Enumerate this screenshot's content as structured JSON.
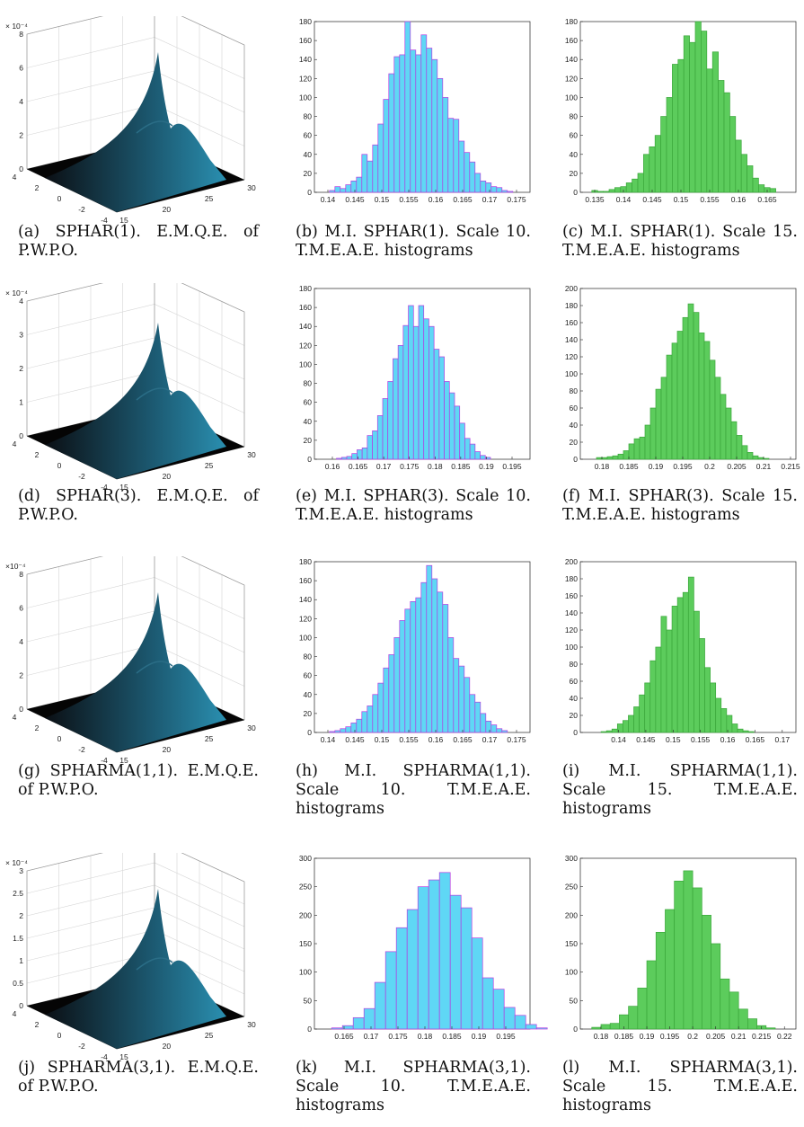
{
  "figure": {
    "rows": [
      {
        "surface": {
          "id": "a",
          "caption": "(a) SPHAR(1). E.M.Q.E. of P.W.P.O.",
          "exponent": "× 10⁻⁴",
          "z_ticks": [
            "0",
            "2",
            "4",
            "6",
            "8"
          ],
          "x_ticks": [
            "15",
            "20",
            "25",
            "30"
          ],
          "y_ticks": [
            "4",
            "2",
            "0",
            "-2",
            "-4"
          ]
        },
        "hist10": {
          "id": "b",
          "caption": "(b) M.I. SPHAR(1). Scale 10. T.M.E.A.E. histograms",
          "x_ticks": [
            "0.14",
            "0.145",
            "0.15",
            "0.155",
            "0.16",
            "0.165",
            "0.17",
            "0.175"
          ],
          "y_ticks": [
            "0",
            "20",
            "40",
            "60",
            "80",
            "100",
            "120",
            "140",
            "160",
            "180"
          ]
        },
        "hist15": {
          "id": "c",
          "caption": "(c) M.I. SPHAR(1). Scale 15. T.M.E.A.E. histograms",
          "x_ticks": [
            "0.135",
            "0.14",
            "0.145",
            "0.15",
            "0.155",
            "0.16",
            "0.165"
          ],
          "y_ticks": [
            "0",
            "20",
            "40",
            "60",
            "80",
            "100",
            "120",
            "140",
            "160",
            "180"
          ]
        }
      },
      {
        "surface": {
          "id": "d",
          "caption": "(d) SPHAR(3). E.M.Q.E. of P.W.P.O.",
          "exponent": "× 10⁻⁴",
          "z_ticks": [
            "0",
            "1",
            "2",
            "3",
            "4"
          ],
          "x_ticks": [
            "15",
            "20",
            "25",
            "30"
          ],
          "y_ticks": [
            "4",
            "2",
            "0",
            "-2",
            "-4"
          ]
        },
        "hist10": {
          "id": "e",
          "caption": "(e) M.I. SPHAR(3). Scale 10. T.M.E.A.E. histograms",
          "x_ticks": [
            "0.16",
            "0.165",
            "0.17",
            "0.175",
            "0.18",
            "0.185",
            "0.19",
            "0.195"
          ],
          "y_ticks": [
            "0",
            "20",
            "40",
            "60",
            "80",
            "100",
            "120",
            "140",
            "160",
            "180"
          ]
        },
        "hist15": {
          "id": "f",
          "caption": "(f) M.I. SPHAR(3). Scale 15. T.M.E.A.E. histograms",
          "x_ticks": [
            "0.18",
            "0.185",
            "0.19",
            "0.195",
            "0.2",
            "0.205",
            "0.21",
            "0.215"
          ],
          "y_ticks": [
            "0",
            "20",
            "40",
            "60",
            "80",
            "100",
            "120",
            "140",
            "160",
            "180",
            "200"
          ]
        }
      },
      {
        "surface": {
          "id": "g",
          "caption": "(g) SPHARMA(1,1). E.M.Q.E. of P.W.P.O.",
          "exponent": "×10⁻⁴",
          "z_ticks": [
            "0",
            "2",
            "4",
            "6",
            "8"
          ],
          "x_ticks": [
            "15",
            "20",
            "25",
            "30"
          ],
          "y_ticks": [
            "4",
            "2",
            "0",
            "-2",
            "-4"
          ]
        },
        "hist10": {
          "id": "h",
          "caption": "(h) M.I. SPHARMA(1,1). Scale 10. T.M.E.A.E. histograms",
          "x_ticks": [
            "0.14",
            "0.145",
            "0.15",
            "0.155",
            "0.16",
            "0.165",
            "0.17",
            "0.175"
          ],
          "y_ticks": [
            "0",
            "20",
            "40",
            "60",
            "80",
            "100",
            "120",
            "140",
            "160",
            "180"
          ]
        },
        "hist15": {
          "id": "i",
          "caption": "(i) M.I. SPHARMA(1,1). Scale 15. T.M.E.A.E. histograms",
          "x_ticks": [
            "0.14",
            "0.145",
            "0.15",
            "0.155",
            "0.16",
            "0.165",
            "0.17"
          ],
          "y_ticks": [
            "0",
            "20",
            "40",
            "60",
            "80",
            "100",
            "120",
            "140",
            "160",
            "180",
            "200"
          ]
        }
      },
      {
        "surface": {
          "id": "j",
          "caption": "(j) SPHARMA(3,1). E.M.Q.E. of P.W.P.O.",
          "exponent": "× 10⁻⁴",
          "z_ticks": [
            "0",
            "0.5",
            "1",
            "1.5",
            "2",
            "2.5",
            "3"
          ],
          "x_ticks": [
            "15",
            "20",
            "25",
            "30"
          ],
          "y_ticks": [
            "4",
            "2",
            "0",
            "-2",
            "-4"
          ]
        },
        "hist10": {
          "id": "k",
          "caption": "(k) M.I. SPHARMA(3,1). Scale 10. T.M.E.A.E. histograms",
          "x_ticks": [
            "0.165",
            "0.17",
            "0.175",
            "0.18",
            "0.185",
            "0.19",
            "0.195"
          ],
          "y_ticks": [
            "0",
            "50",
            "100",
            "150",
            "200",
            "250",
            "300"
          ]
        },
        "hist15": {
          "id": "l",
          "caption": "(l) M.I. SPHARMA(3,1). Scale 15. T.M.E.A.E. histograms",
          "x_ticks": [
            "0.18",
            "0.185",
            "0.19",
            "0.195",
            "0.2",
            "0.205",
            "0.21",
            "0.215",
            "0.22"
          ],
          "y_ticks": [
            "0",
            "50",
            "100",
            "150",
            "200",
            "250",
            "300"
          ]
        }
      }
    ]
  },
  "chart_data": [
    {
      "id": "b",
      "type": "bar",
      "xlim": [
        0.1375,
        0.1775
      ],
      "ylim": [
        0,
        180
      ],
      "bin_start": 0.1403,
      "bin_width": 0.001,
      "values": [
        2,
        6,
        4,
        8,
        12,
        16,
        40,
        33,
        50,
        72,
        98,
        125,
        143,
        145,
        180,
        150,
        145,
        166,
        152,
        140,
        120,
        100,
        78,
        77,
        54,
        42,
        32,
        20,
        12,
        10,
        6,
        5,
        2,
        1
      ],
      "fill": "#5fd7f5",
      "edge": "#b33ce0"
    },
    {
      "id": "c",
      "type": "bar",
      "xlim": [
        0.1325,
        0.17
      ],
      "ylim": [
        0,
        180
      ],
      "bin_start": 0.1345,
      "bin_width": 0.001,
      "values": [
        2,
        1,
        1,
        3,
        5,
        6,
        10,
        14,
        20,
        40,
        48,
        60,
        80,
        100,
        135,
        140,
        165,
        158,
        180,
        170,
        130,
        148,
        118,
        105,
        80,
        55,
        40,
        28,
        15,
        8,
        5,
        4
      ],
      "fill": "#5ccc5c",
      "edge": "#3aa63a"
    },
    {
      "id": "e",
      "type": "bar",
      "xlim": [
        0.1565,
        0.1985
      ],
      "ylim": [
        0,
        180
      ],
      "bin_start": 0.1608,
      "bin_width": 0.001,
      "values": [
        1,
        2,
        3,
        6,
        10,
        12,
        25,
        30,
        46,
        64,
        82,
        106,
        120,
        141,
        162,
        140,
        162,
        148,
        140,
        116,
        108,
        82,
        70,
        56,
        38,
        22,
        16,
        8,
        4,
        2
      ],
      "fill": "#5fd7f5",
      "edge": "#b33ce0"
    },
    {
      "id": "f",
      "type": "bar",
      "xlim": [
        0.176,
        0.216
      ],
      "ylim": [
        0,
        200
      ],
      "bin_start": 0.179,
      "bin_width": 0.001,
      "values": [
        2,
        2,
        3,
        4,
        6,
        10,
        18,
        24,
        26,
        40,
        60,
        82,
        96,
        122,
        136,
        150,
        166,
        182,
        172,
        148,
        138,
        116,
        96,
        76,
        60,
        44,
        28,
        16,
        8,
        4,
        2,
        1
      ],
      "fill": "#5ccc5c",
      "edge": "#3aa63a"
    },
    {
      "id": "h",
      "type": "bar",
      "xlim": [
        0.1375,
        0.1775
      ],
      "ylim": [
        0,
        180
      ],
      "bin_start": 0.1403,
      "bin_width": 0.001,
      "values": [
        1,
        2,
        4,
        6,
        10,
        14,
        22,
        28,
        40,
        52,
        68,
        82,
        100,
        118,
        130,
        138,
        142,
        158,
        176,
        162,
        148,
        135,
        100,
        78,
        70,
        58,
        40,
        32,
        20,
        12,
        8,
        4,
        2
      ],
      "fill": "#5fd7f5",
      "edge": "#b33ce0"
    },
    {
      "id": "i",
      "type": "bar",
      "xlim": [
        0.133,
        0.1725
      ],
      "ylim": [
        0,
        200
      ],
      "bin_start": 0.1368,
      "bin_width": 0.001,
      "values": [
        1,
        2,
        4,
        10,
        14,
        20,
        30,
        44,
        58,
        84,
        100,
        136,
        120,
        148,
        158,
        164,
        182,
        142,
        110,
        76,
        58,
        40,
        28,
        20,
        10,
        4,
        2,
        1
      ],
      "fill": "#5ccc5c",
      "edge": "#3aa63a"
    },
    {
      "id": "k",
      "type": "bar",
      "xlim": [
        0.1595,
        0.1995
      ],
      "ylim": [
        0,
        300
      ],
      "bin_start": 0.1627,
      "bin_width": 0.002,
      "values": [
        2,
        6,
        20,
        36,
        82,
        136,
        178,
        210,
        250,
        262,
        275,
        235,
        213,
        160,
        90,
        70,
        38,
        24,
        8,
        2
      ],
      "fill": "#5fd7f5",
      "edge": "#b33ce0"
    },
    {
      "id": "l",
      "type": "bar",
      "xlim": [
        0.1755,
        0.2225
      ],
      "ylim": [
        0,
        300
      ],
      "bin_start": 0.178,
      "bin_width": 0.002,
      "values": [
        3,
        8,
        10,
        25,
        40,
        72,
        120,
        170,
        210,
        260,
        278,
        248,
        200,
        150,
        88,
        65,
        35,
        18,
        6,
        2
      ],
      "fill": "#5ccc5c",
      "edge": "#3aa63a"
    }
  ]
}
